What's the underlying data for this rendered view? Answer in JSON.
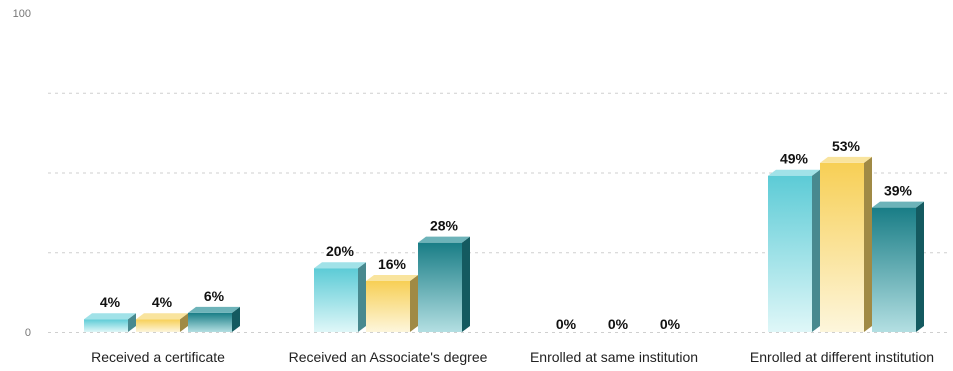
{
  "chart_data": {
    "type": "bar",
    "categories": [
      "Received a certificate",
      "Received an Associate's degree",
      "Enrolled at same institution",
      "Enrolled at different institution"
    ],
    "series": [
      {
        "values": [
          4,
          20,
          0,
          49
        ],
        "value_labels": [
          "4%",
          "20%",
          "0%",
          "49%"
        ],
        "color": "#6fd3dc"
      },
      {
        "values": [
          4,
          16,
          0,
          53
        ],
        "value_labels": [
          "4%",
          "16%",
          "0%",
          "53%"
        ],
        "color": "#f6d56a"
      },
      {
        "values": [
          6,
          28,
          0,
          39
        ],
        "value_labels": [
          "6%",
          "28%",
          "0%",
          "39%"
        ],
        "color": "#1f8a93"
      }
    ],
    "ylim": [
      0,
      100
    ],
    "y_tick_labels": [
      "0",
      "100"
    ],
    "grid": true,
    "bar_style": "3d-gradient"
  }
}
